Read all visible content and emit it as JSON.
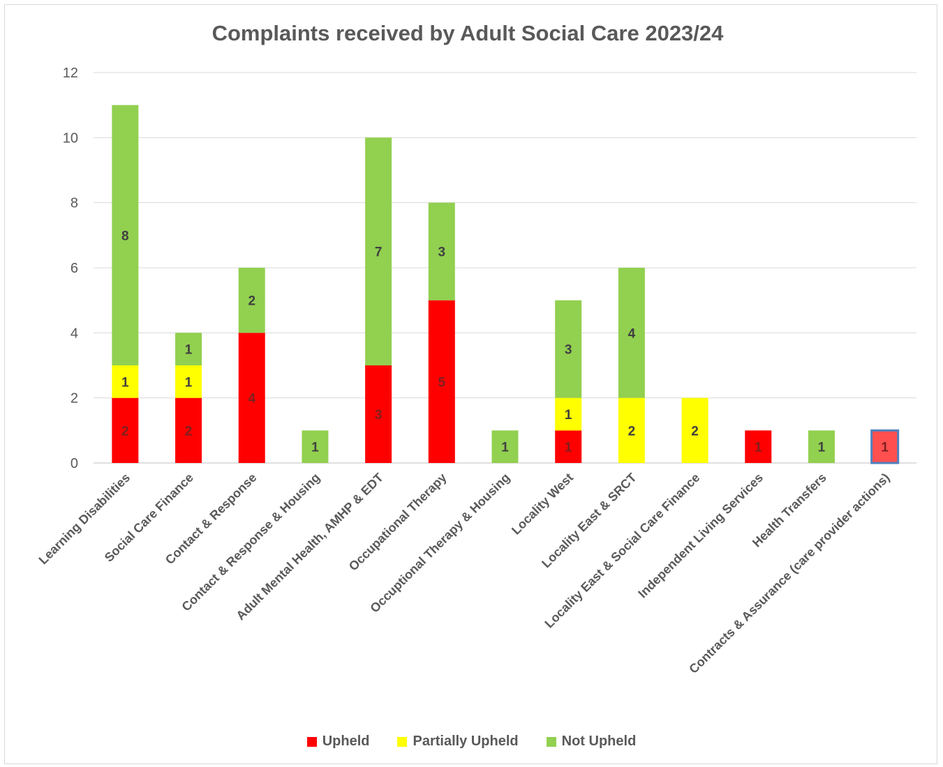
{
  "chart_data": {
    "type": "bar",
    "stacked": true,
    "title": "Complaints received by Adult Social Care 2023/24",
    "xlabel": "",
    "ylabel": "",
    "ylim": [
      0,
      12
    ],
    "yticks": [
      0,
      2,
      4,
      6,
      8,
      10,
      12
    ],
    "grid": true,
    "legend_position": "bottom",
    "categories": [
      "Learning Disabilities",
      "Social Care Finance",
      "Contact & Response",
      "Contact & Response & Housing",
      "Adult Mental Health, AMHP & EDT",
      "Occupational Therapy",
      "Occuptional Therapy & Housing",
      "Locality West",
      "Locality East & SRCT",
      "Locality East & Social Care Finance",
      "Independent Living Services",
      "Health Transfers",
      "Contracts & Assurance (care provider actions)"
    ],
    "series": [
      {
        "name": "Upheld",
        "color": "#ff0000",
        "values": [
          2,
          2,
          4,
          0,
          3,
          5,
          0,
          1,
          0,
          0,
          1,
          0,
          1
        ]
      },
      {
        "name": "Partially Upheld",
        "color": "#ffff00",
        "values": [
          1,
          1,
          0,
          0,
          0,
          0,
          0,
          1,
          2,
          2,
          0,
          0,
          0
        ]
      },
      {
        "name": "Not Upheld",
        "color": "#92d050",
        "values": [
          8,
          1,
          2,
          1,
          7,
          3,
          1,
          3,
          4,
          0,
          0,
          1,
          0
        ]
      }
    ]
  }
}
